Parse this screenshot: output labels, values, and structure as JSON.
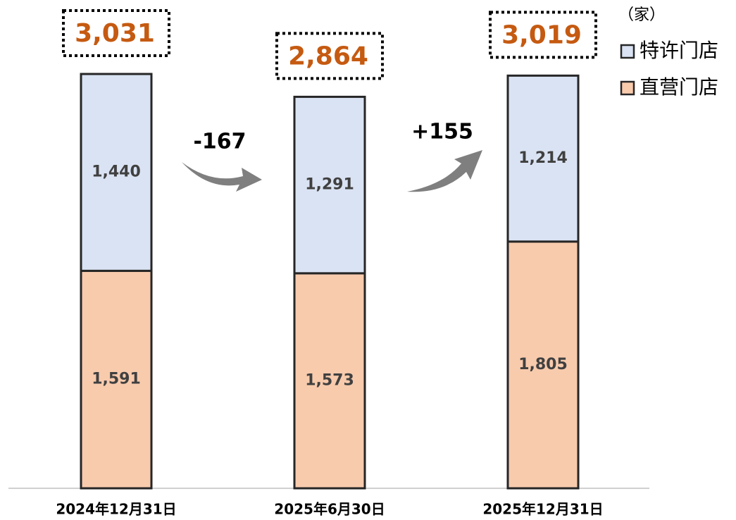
{
  "chart_data": {
    "type": "stacked_bar",
    "unit_label": "（家）",
    "categories": [
      "2024年12月31日",
      "2025年6月30日",
      "2025年12月31日"
    ],
    "series": [
      {
        "name": "直营门店",
        "color": "#f8cbad",
        "values": [
          1591,
          1573,
          1805
        ],
        "value_labels": [
          "1,591",
          "1,573",
          "1,805"
        ]
      },
      {
        "name": "特许门店",
        "color": "#dae3f3",
        "values": [
          1440,
          1291,
          1214
        ],
        "value_labels": [
          "1,440",
          "1,291",
          "1,214"
        ]
      }
    ],
    "totals": [
      3031,
      2864,
      3019
    ],
    "total_labels": [
      "3,031",
      "2,864",
      "3,019"
    ],
    "changes": [
      -167,
      155
    ],
    "change_labels": [
      "-167",
      "+155"
    ]
  }
}
